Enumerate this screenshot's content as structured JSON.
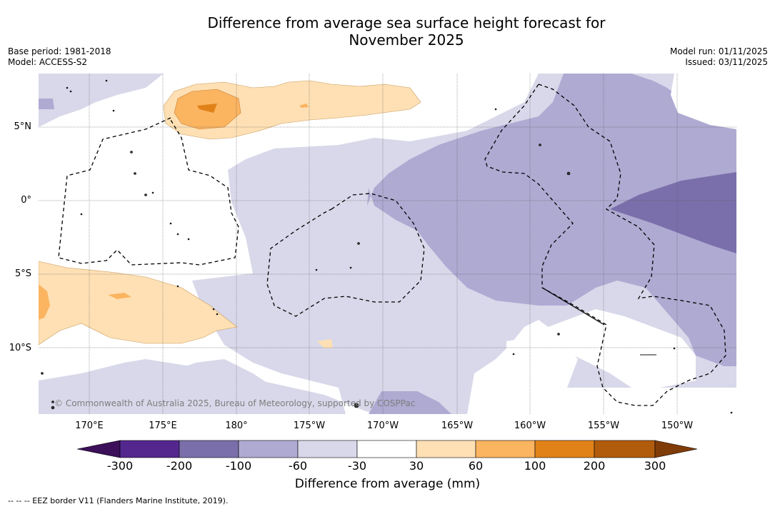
{
  "title_line1": "Difference from average sea surface height forecast for",
  "title_line2": "November 2025",
  "base_period": "Base period: 1981-2018",
  "model": "Model: ACCESS-S2",
  "model_run": "Model run: 01/11/2025",
  "issued": "Issued: 03/11/2025",
  "lat_labels": [
    "5°N",
    "0°",
    "5°S",
    "10°S"
  ],
  "lon_labels": [
    "170°E",
    "175°E",
    "180°",
    "175°W",
    "170°W",
    "165°W",
    "160°W",
    "155°W",
    "150°W"
  ],
  "credit": "© Commonwealth of Australia 2025, Bureau of Meteorology, supported by COSPPac",
  "colorbar": {
    "ticks": [
      "-300",
      "-200",
      "-100",
      "-60",
      "-30",
      "30",
      "60",
      "100",
      "200",
      "300"
    ],
    "colors": [
      "#3c0f5a",
      "#54278f",
      "#7b6fab",
      "#aeaad2",
      "#d8d8ea",
      "#ffffff",
      "#fee0b4",
      "#fbb460",
      "#e18219",
      "#b15b0c",
      "#7f3b08"
    ],
    "title": "Difference from average (mm)"
  },
  "eez_legend": "--  --  -- EEZ border V11 (Flanders Marine Institute, 2019)."
}
